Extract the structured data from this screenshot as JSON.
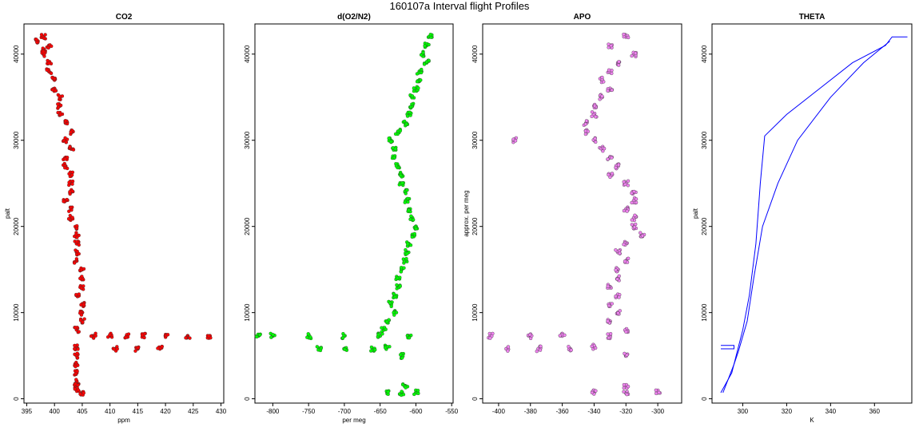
{
  "figure_title": "160107a   Interval flight Profiles",
  "chart_data": [
    {
      "type": "scatter",
      "title": "CO2",
      "xlabel": "ppm",
      "ylabel": "palt",
      "xlim": [
        394.5,
        430.5
      ],
      "ylim": [
        -500,
        43500
      ],
      "xticks": [
        395,
        400,
        405,
        410,
        415,
        420,
        425,
        430
      ],
      "yticks": [
        0,
        10000,
        20000,
        30000,
        40000
      ],
      "color": "#ff0000",
      "series": [
        {
          "values": [
            [
              398,
              42000
            ],
            [
              397,
              41500
            ],
            [
              399,
              41000
            ],
            [
              398,
              40500
            ],
            [
              398,
              40000
            ],
            [
              399,
              39000
            ],
            [
              399,
              38000
            ],
            [
              400,
              37000
            ],
            [
              400,
              36000
            ],
            [
              401,
              35000
            ],
            [
              401,
              34000
            ],
            [
              401,
              33000
            ],
            [
              402,
              32000
            ],
            [
              403,
              31000
            ],
            [
              402,
              30000
            ],
            [
              403,
              29000
            ],
            [
              402,
              28000
            ],
            [
              402,
              27000
            ],
            [
              403,
              26000
            ],
            [
              403,
              25000
            ],
            [
              403,
              24000
            ],
            [
              402,
              23000
            ],
            [
              403,
              22000
            ],
            [
              403,
              21000
            ],
            [
              404,
              20000
            ],
            [
              404,
              19000
            ],
            [
              404,
              18000
            ],
            [
              404,
              17000
            ],
            [
              404,
              16000
            ],
            [
              405,
              15000
            ],
            [
              405,
              14000
            ],
            [
              405,
              13000
            ],
            [
              404,
              12000
            ],
            [
              405,
              11000
            ],
            [
              405,
              10000
            ],
            [
              405,
              9000
            ],
            [
              404,
              8000
            ],
            [
              407,
              7300
            ],
            [
              410,
              7300
            ],
            [
              413,
              7300
            ],
            [
              416,
              7300
            ],
            [
              420,
              7300
            ],
            [
              424,
              7300
            ],
            [
              428,
              7300
            ],
            [
              411,
              5800
            ],
            [
              415,
              5800
            ],
            [
              419,
              5800
            ],
            [
              404,
              6000
            ],
            [
              404,
              5000
            ],
            [
              404,
              4000
            ],
            [
              404,
              3000
            ],
            [
              404,
              2000
            ],
            [
              404,
              1500
            ],
            [
              404,
              1000
            ],
            [
              405,
              700
            ]
          ]
        }
      ]
    },
    {
      "type": "scatter",
      "title": "d(O2/N2)",
      "xlabel": "per meg",
      "ylabel": "",
      "xlim": [
        -825,
        -548
      ],
      "ylim": [
        -500,
        43500
      ],
      "xticks": [
        -800,
        -750,
        -700,
        -650,
        -600,
        -550
      ],
      "yticks": [
        0,
        10000,
        20000,
        30000,
        40000
      ],
      "color": "#00ff00",
      "series": [
        {
          "values": [
            [
              -580,
              42000
            ],
            [
              -585,
              41000
            ],
            [
              -590,
              40000
            ],
            [
              -585,
              39000
            ],
            [
              -595,
              38000
            ],
            [
              -595,
              37000
            ],
            [
              -600,
              36000
            ],
            [
              -605,
              35000
            ],
            [
              -605,
              34000
            ],
            [
              -610,
              33000
            ],
            [
              -615,
              32000
            ],
            [
              -625,
              31000
            ],
            [
              -635,
              30000
            ],
            [
              -630,
              29000
            ],
            [
              -630,
              28000
            ],
            [
              -625,
              27000
            ],
            [
              -620,
              26000
            ],
            [
              -620,
              25000
            ],
            [
              -615,
              24000
            ],
            [
              -612,
              23000
            ],
            [
              -610,
              22000
            ],
            [
              -605,
              21000
            ],
            [
              -600,
              20000
            ],
            [
              -605,
              19000
            ],
            [
              -610,
              18000
            ],
            [
              -612,
              17000
            ],
            [
              -615,
              16000
            ],
            [
              -620,
              15000
            ],
            [
              -625,
              14000
            ],
            [
              -625,
              13000
            ],
            [
              -630,
              12000
            ],
            [
              -635,
              11000
            ],
            [
              -630,
              10000
            ],
            [
              -640,
              9000
            ],
            [
              -645,
              8000
            ],
            [
              -610,
              7300
            ],
            [
              -650,
              7300
            ],
            [
              -700,
              7300
            ],
            [
              -750,
              7300
            ],
            [
              -800,
              7300
            ],
            [
              -820,
              7300
            ],
            [
              -660,
              5800
            ],
            [
              -700,
              5800
            ],
            [
              -735,
              5800
            ],
            [
              -640,
              6000
            ],
            [
              -620,
              5000
            ],
            [
              -615,
              1500
            ],
            [
              -620,
              700
            ],
            [
              -640,
              700
            ],
            [
              -600,
              700
            ]
          ]
        }
      ]
    },
    {
      "type": "scatter",
      "title": "APO",
      "xlabel": "",
      "ylabel": "approx. per meg",
      "xlim": [
        -410,
        -285
      ],
      "ylim": [
        -500,
        43500
      ],
      "xticks": [
        -400,
        -380,
        -360,
        -340,
        -320,
        -300
      ],
      "yticks": [
        0,
        10000,
        20000,
        30000,
        40000
      ],
      "color": "#ee82ee",
      "series": [
        {
          "values": [
            [
              -320,
              42000
            ],
            [
              -330,
              41000
            ],
            [
              -315,
              40000
            ],
            [
              -325,
              39000
            ],
            [
              -330,
              38000
            ],
            [
              -335,
              37000
            ],
            [
              -330,
              36000
            ],
            [
              -335,
              35000
            ],
            [
              -340,
              34000
            ],
            [
              -340,
              33000
            ],
            [
              -345,
              32000
            ],
            [
              -345,
              31000
            ],
            [
              -340,
              30000
            ],
            [
              -335,
              29000
            ],
            [
              -330,
              28000
            ],
            [
              -325,
              27000
            ],
            [
              -330,
              26000
            ],
            [
              -320,
              25000
            ],
            [
              -315,
              24000
            ],
            [
              -315,
              23000
            ],
            [
              -320,
              22000
            ],
            [
              -315,
              21000
            ],
            [
              -315,
              20000
            ],
            [
              -310,
              19000
            ],
            [
              -320,
              18000
            ],
            [
              -325,
              17000
            ],
            [
              -320,
              16000
            ],
            [
              -325,
              15000
            ],
            [
              -325,
              14000
            ],
            [
              -330,
              13000
            ],
            [
              -325,
              12000
            ],
            [
              -330,
              11000
            ],
            [
              -325,
              10000
            ],
            [
              -330,
              9000
            ],
            [
              -320,
              8000
            ],
            [
              -330,
              7300
            ],
            [
              -360,
              7300
            ],
            [
              -380,
              7300
            ],
            [
              -405,
              7300
            ],
            [
              -355,
              5800
            ],
            [
              -375,
              5800
            ],
            [
              -395,
              5800
            ],
            [
              -340,
              6000
            ],
            [
              -320,
              5000
            ],
            [
              -320,
              1500
            ],
            [
              -320,
              700
            ],
            [
              -340,
              700
            ],
            [
              -300,
              700
            ],
            [
              -390,
              30000
            ]
          ]
        }
      ]
    },
    {
      "type": "line",
      "title": "THETA",
      "xlabel": "K",
      "ylabel": "palt",
      "xlim": [
        286,
        377
      ],
      "ylim": [
        -500,
        43500
      ],
      "xticks": [
        300,
        320,
        340,
        360
      ],
      "yticks": [
        0,
        10000,
        20000,
        30000,
        40000
      ],
      "color": "#0000ff",
      "series": [
        {
          "values": [
            [
              290,
              700
            ],
            [
              295,
              3000
            ],
            [
              297,
              5000
            ],
            [
              300,
              8000
            ],
            [
              303,
              12000
            ],
            [
              306,
              18000
            ],
            [
              308,
              25000
            ],
            [
              310,
              30500
            ],
            [
              320,
              33000
            ],
            [
              335,
              36000
            ],
            [
              350,
              39000
            ],
            [
              365,
              41000
            ],
            [
              368,
              42000
            ],
            [
              375,
              42000
            ]
          ]
        },
        {
          "values": [
            [
              291,
              700
            ],
            [
              296,
              4000
            ],
            [
              298,
              5500
            ],
            [
              302,
              9000
            ],
            [
              305,
              14000
            ],
            [
              309,
              20000
            ],
            [
              316,
              25000
            ],
            [
              325,
              30000
            ],
            [
              340,
              35000
            ],
            [
              355,
              39000
            ],
            [
              367,
              41500
            ]
          ]
        },
        {
          "values": [
            [
              290,
              5800
            ],
            [
              296,
              5800
            ],
            [
              296,
              6200
            ],
            [
              290,
              6200
            ]
          ]
        }
      ]
    }
  ]
}
